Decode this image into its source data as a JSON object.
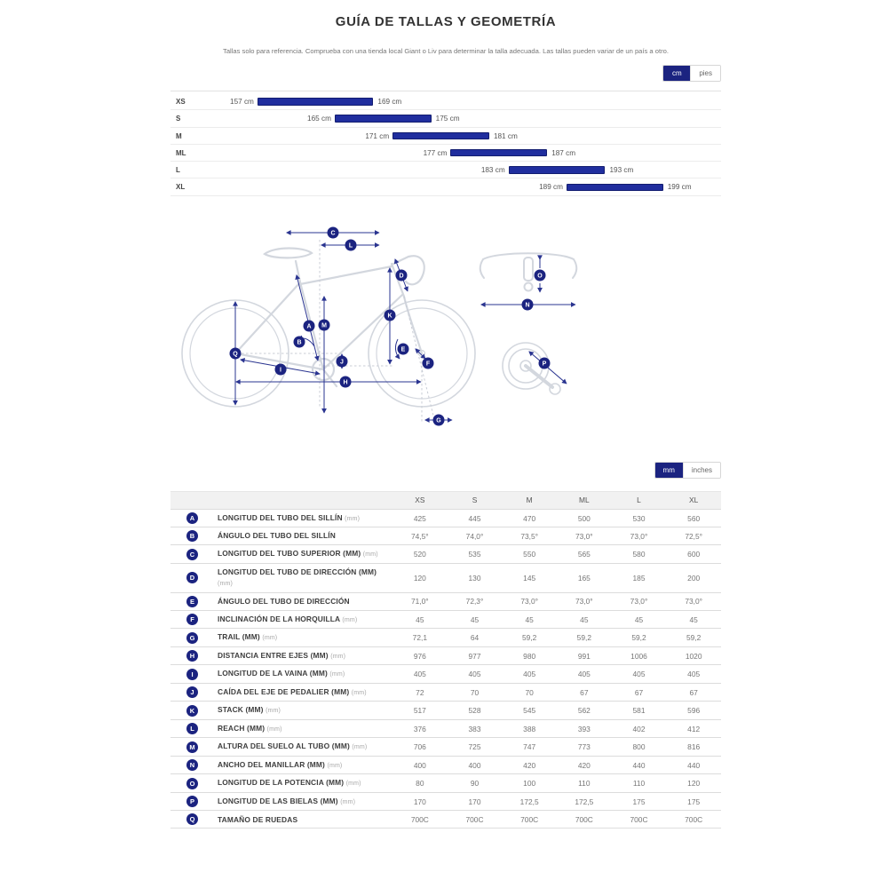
{
  "page": {
    "title": "GUÍA DE TALLAS Y GEOMETRÍA",
    "subtitle": "Tallas solo para referencia. Comprueba con una tienda local Giant o Liv para determinar la talla adecuada. Las tallas pueden variar de un país a otro."
  },
  "height_toggle": {
    "options": [
      "cm",
      "pies"
    ],
    "selected": "cm"
  },
  "unit_toggle": {
    "options": [
      "mm",
      "inches"
    ],
    "selected": "mm"
  },
  "chart_data": {
    "type": "bar",
    "orientation": "horizontal-range",
    "title": "",
    "unit": "cm",
    "categories": [
      "XS",
      "S",
      "M",
      "ML",
      "L",
      "XL"
    ],
    "ranges": [
      [
        157,
        169
      ],
      [
        165,
        175
      ],
      [
        171,
        181
      ],
      [
        177,
        187
      ],
      [
        183,
        193
      ],
      [
        189,
        199
      ]
    ],
    "xlim": [
      148,
      205
    ],
    "grid": false,
    "bar_color": "#202e9e"
  },
  "diagram": {
    "badges": [
      "A",
      "B",
      "C",
      "D",
      "E",
      "F",
      "G",
      "H",
      "I",
      "J",
      "K",
      "L",
      "M",
      "N",
      "O",
      "P",
      "Q"
    ]
  },
  "table": {
    "columns": [
      "XS",
      "S",
      "M",
      "ML",
      "L",
      "XL"
    ],
    "rows": [
      {
        "key": "A",
        "label": "LONGITUD DEL TUBO DEL SILLÍN",
        "suffix": "(mm)",
        "values": [
          "425",
          "445",
          "470",
          "500",
          "530",
          "560"
        ]
      },
      {
        "key": "B",
        "label": "ÁNGULO DEL TUBO DEL SILLÍN",
        "suffix": "",
        "values": [
          "74,5°",
          "74,0°",
          "73,5°",
          "73,0°",
          "73,0°",
          "72,5°"
        ]
      },
      {
        "key": "C",
        "label": "LONGITUD DEL TUBO SUPERIOR (MM)",
        "suffix": "(mm)",
        "values": [
          "520",
          "535",
          "550",
          "565",
          "580",
          "600"
        ]
      },
      {
        "key": "D",
        "label": "LONGITUD DEL TUBO DE DIRECCIÓN (MM)",
        "suffix": "(mm)",
        "values": [
          "120",
          "130",
          "145",
          "165",
          "185",
          "200"
        ]
      },
      {
        "key": "E",
        "label": "ÁNGULO DEL TUBO DE DIRECCIÓN",
        "suffix": "",
        "values": [
          "71,0°",
          "72,3°",
          "73,0°",
          "73,0°",
          "73,0°",
          "73,0°"
        ]
      },
      {
        "key": "F",
        "label": "INCLINACIÓN DE LA HORQUILLA",
        "suffix": "(mm)",
        "values": [
          "45",
          "45",
          "45",
          "45",
          "45",
          "45"
        ]
      },
      {
        "key": "G",
        "label": "TRAIL (MM)",
        "suffix": "(mm)",
        "values": [
          "72,1",
          "64",
          "59,2",
          "59,2",
          "59,2",
          "59,2"
        ]
      },
      {
        "key": "H",
        "label": "DISTANCIA ENTRE EJES (MM)",
        "suffix": "(mm)",
        "values": [
          "976",
          "977",
          "980",
          "991",
          "1006",
          "1020"
        ]
      },
      {
        "key": "I",
        "label": "LONGITUD DE LA VAINA (MM)",
        "suffix": "(mm)",
        "values": [
          "405",
          "405",
          "405",
          "405",
          "405",
          "405"
        ]
      },
      {
        "key": "J",
        "label": "CAÍDA DEL EJE DE PEDALIER (MM)",
        "suffix": "(mm)",
        "values": [
          "72",
          "70",
          "70",
          "67",
          "67",
          "67"
        ]
      },
      {
        "key": "K",
        "label": "STACK (MM)",
        "suffix": "(mm)",
        "values": [
          "517",
          "528",
          "545",
          "562",
          "581",
          "596"
        ]
      },
      {
        "key": "L",
        "label": "REACH (MM)",
        "suffix": "(mm)",
        "values": [
          "376",
          "383",
          "388",
          "393",
          "402",
          "412"
        ]
      },
      {
        "key": "M",
        "label": "ALTURA DEL SUELO AL TUBO (MM)",
        "suffix": "(mm)",
        "values": [
          "706",
          "725",
          "747",
          "773",
          "800",
          "816"
        ]
      },
      {
        "key": "N",
        "label": "ANCHO DEL MANILLAR (MM)",
        "suffix": "(mm)",
        "values": [
          "400",
          "400",
          "420",
          "420",
          "440",
          "440"
        ]
      },
      {
        "key": "O",
        "label": "LONGITUD DE LA POTENCIA (MM)",
        "suffix": "(mm)",
        "values": [
          "80",
          "90",
          "100",
          "110",
          "110",
          "120"
        ]
      },
      {
        "key": "P",
        "label": "LONGITUD DE LAS BIELAS (MM)",
        "suffix": "(mm)",
        "values": [
          "170",
          "170",
          "172,5",
          "172,5",
          "175",
          "175"
        ]
      },
      {
        "key": "Q",
        "label": "TAMAÑO DE RUEDAS",
        "suffix": "",
        "values": [
          "700C",
          "700C",
          "700C",
          "700C",
          "700C",
          "700C"
        ]
      }
    ]
  },
  "colors": {
    "accent": "#1b2380",
    "bar": "#202e9e",
    "dim_line": "#2a3490",
    "frame_gray": "#d3d7de"
  }
}
